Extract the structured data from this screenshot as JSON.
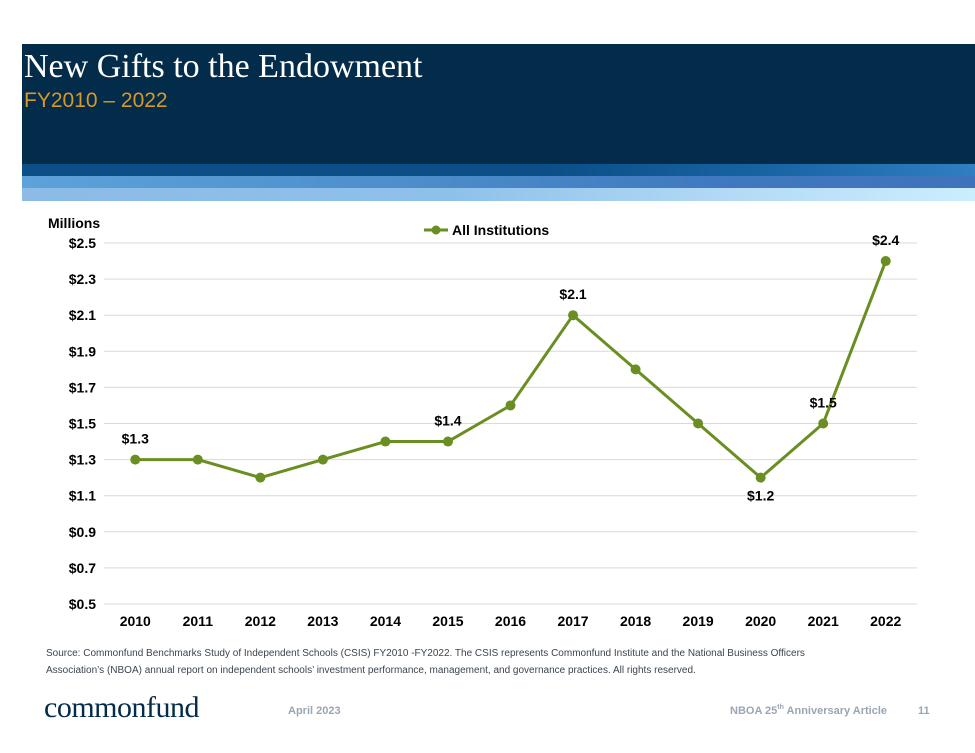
{
  "slide": {
    "title": "New Gifts to the Endowment",
    "subtitle": "FY2010 – 2022",
    "source_line_1": "Source: Commonfund Benchmarks Study of Independent Schools (CSIS) FY2010 -FY2022. The CSIS represents Commonfund Institute and the National Business Officers",
    "source_line_2": "Association’s (NBOA) annual report on independent schools’ investment performance, management, and governance practices. All rights reserved."
  },
  "colors": {
    "header_bg": "#032b4a",
    "subtitle": "#d99726",
    "series_line": "#6b8e23",
    "gridline": "#d9d9d9"
  },
  "chart_data": {
    "type": "line",
    "title": "",
    "xlabel": "",
    "ylabel": "Millions",
    "categories": [
      "2010",
      "2011",
      "2012",
      "2013",
      "2014",
      "2015",
      "2016",
      "2017",
      "2018",
      "2019",
      "2020",
      "2021",
      "2022"
    ],
    "series": [
      {
        "name": "All Institutions",
        "values": [
          1.3,
          1.3,
          1.2,
          1.3,
          1.4,
          1.4,
          1.6,
          2.1,
          1.8,
          1.5,
          1.2,
          1.5,
          2.4
        ]
      }
    ],
    "ylim": [
      0.5,
      2.5
    ],
    "y_ticks": [
      0.5,
      0.7,
      0.9,
      1.1,
      1.3,
      1.5,
      1.7,
      1.9,
      2.1,
      2.3,
      2.5
    ],
    "y_tick_labels": [
      "$0.5",
      "$0.7",
      "$0.9",
      "$1.1",
      "$1.3",
      "$1.5",
      "$1.7",
      "$1.9",
      "$2.1",
      "$2.3",
      "$2.5"
    ],
    "data_labels": [
      {
        "index": 0,
        "text": "$1.3",
        "position": "above"
      },
      {
        "index": 5,
        "text": "$1.4",
        "position": "above"
      },
      {
        "index": 7,
        "text": "$2.1",
        "position": "above"
      },
      {
        "index": 10,
        "text": "$1.2",
        "position": "below"
      },
      {
        "index": 11,
        "text": "$1.5",
        "position": "above"
      },
      {
        "index": 12,
        "text": "$2.4",
        "position": "above"
      }
    ],
    "grid": true,
    "legend": "top-center"
  },
  "footer": {
    "logo": "commonfund",
    "date": "April 2023",
    "article_prefix": "NBOA 25",
    "article_sup": "th",
    "article_suffix": " Anniversary Article",
    "page": "11"
  }
}
